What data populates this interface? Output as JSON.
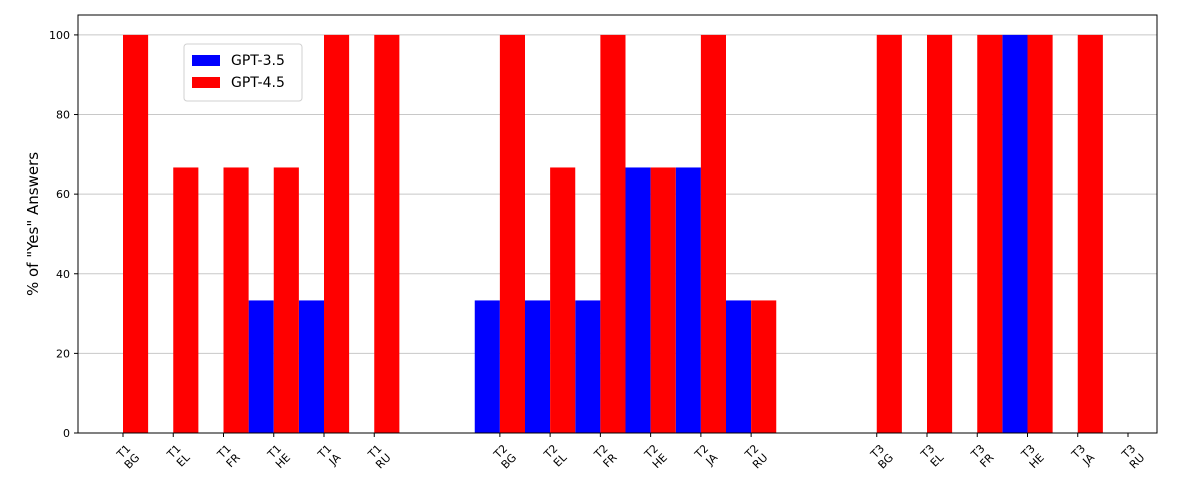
{
  "chart_data": {
    "type": "bar",
    "title": "",
    "xlabel": "",
    "ylabel": "% of \"Yes\" Answers",
    "ylim": [
      0,
      105
    ],
    "yticks": [
      0,
      20,
      40,
      60,
      80,
      100
    ],
    "grid": "y",
    "legend": "top-left",
    "categories": [
      [
        "T1",
        "BG"
      ],
      [
        "T1",
        "EL"
      ],
      [
        "T1",
        "FR"
      ],
      [
        "T1",
        "HE"
      ],
      [
        "T1",
        "JA"
      ],
      [
        "T1",
        "RU"
      ],
      [
        "T2",
        "BG"
      ],
      [
        "T2",
        "EL"
      ],
      [
        "T2",
        "FR"
      ],
      [
        "T2",
        "HE"
      ],
      [
        "T2",
        "JA"
      ],
      [
        "T2",
        "RU"
      ],
      [
        "T3",
        "BG"
      ],
      [
        "T3",
        "EL"
      ],
      [
        "T3",
        "FR"
      ],
      [
        "T3",
        "HE"
      ],
      [
        "T3",
        "JA"
      ],
      [
        "T3",
        "RU"
      ]
    ],
    "groups": [
      6,
      6,
      6
    ],
    "series": [
      {
        "name": "GPT-3.5",
        "color": "#0000ff",
        "values": [
          0,
          0,
          0,
          33.3,
          33.3,
          0,
          33.3,
          33.3,
          33.3,
          66.7,
          66.7,
          33.3,
          0,
          0,
          0,
          100,
          0,
          0
        ]
      },
      {
        "name": "GPT-4.5",
        "color": "#ff0000",
        "values": [
          100,
          66.7,
          66.7,
          66.7,
          100,
          100,
          100,
          66.7,
          100,
          66.7,
          100,
          33.3,
          100,
          100,
          100,
          100,
          100,
          0
        ]
      }
    ]
  }
}
